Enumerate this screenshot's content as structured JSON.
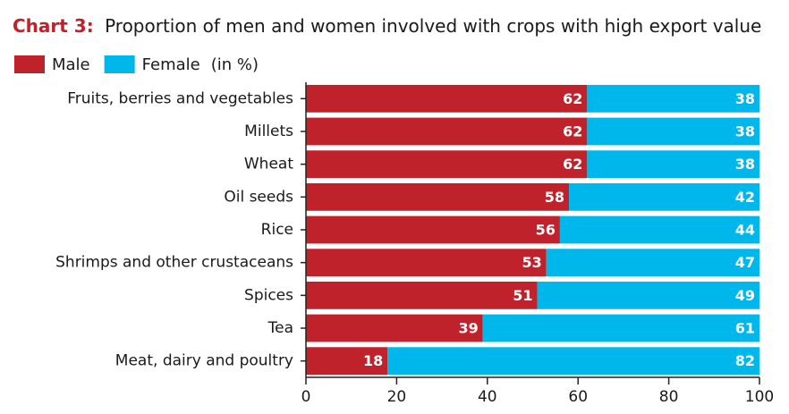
{
  "chart_data": {
    "type": "stacked-bar-horizontal",
    "title_label": "Chart 3:",
    "title": "Proportion of men and women involved with crops with high export value",
    "legend_note": "(in %)",
    "categories": [
      "Fruits, berries and vegetables",
      "Millets",
      "Wheat",
      "Oil seeds",
      "Rice",
      "Shrimps and other crustaceans",
      "Spices",
      "Tea",
      "Meat, dairy and poultry"
    ],
    "series": [
      {
        "name": "Male",
        "color": "#c0222b",
        "values": [
          62,
          62,
          62,
          58,
          56,
          53,
          51,
          39,
          18
        ]
      },
      {
        "name": "Female",
        "color": "#00b7eb",
        "values": [
          38,
          38,
          38,
          42,
          44,
          47,
          49,
          61,
          82
        ]
      }
    ],
    "xlim": [
      0,
      100
    ],
    "xticks": [
      0,
      20,
      40,
      60,
      80,
      100
    ],
    "grid": false
  }
}
